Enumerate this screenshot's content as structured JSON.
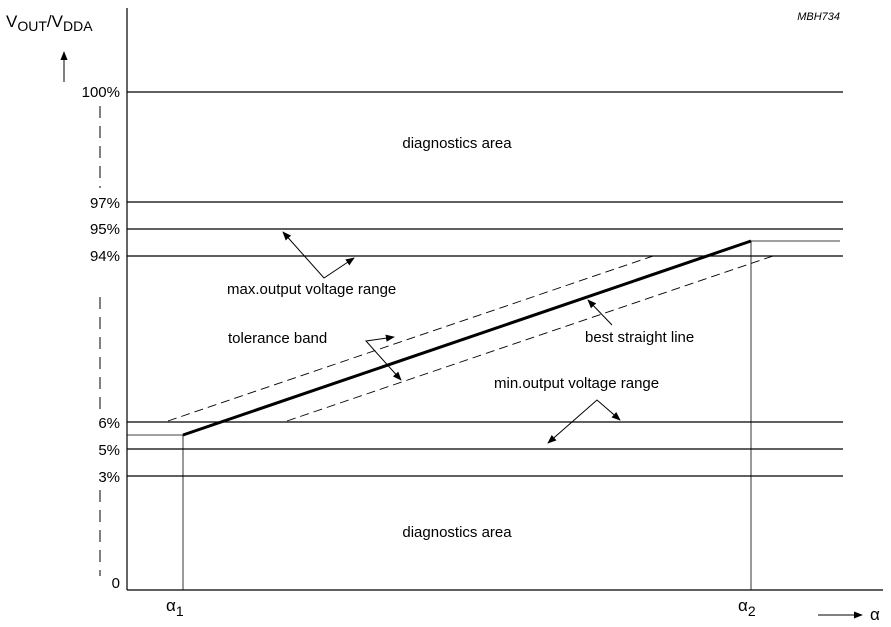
{
  "figure": {
    "tag": "MBH734",
    "y_axis": {
      "label_main": "V",
      "label_sub1": "OUT",
      "label_slash": "/V",
      "label_sub2": "DDA"
    },
    "x_axis": {
      "label": "α",
      "tick1_main": "α",
      "tick1_sub": "1",
      "tick2_main": "α",
      "tick2_sub": "2"
    },
    "ticks": {
      "t100": "100%",
      "t97": "97%",
      "t95": "95%",
      "t94": "94%",
      "t6": "6%",
      "t5": "5%",
      "t3": "3%",
      "t0": "0"
    },
    "labels": {
      "diag_top": "diagnostics area",
      "diag_bottom": "diagnostics area",
      "max_range": "max.output voltage range",
      "min_range": "min.output voltage range",
      "tolerance": "tolerance band",
      "bsl": "best straight line"
    }
  },
  "chart_data": {
    "type": "line",
    "xlabel": "α",
    "ylabel": "VOUT/VDDA",
    "y_levels_percent": [
      0,
      3,
      5,
      6,
      94,
      95,
      97,
      100
    ],
    "series": [
      {
        "x": [
          "α1",
          "α2"
        ],
        "y": [
          5.5,
          94.5
        ]
      }
    ]
  }
}
